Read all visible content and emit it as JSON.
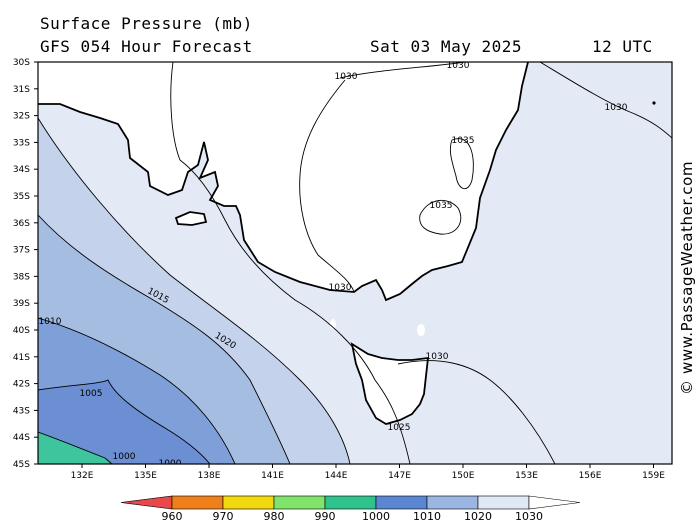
{
  "header": {
    "title": "Surface Pressure (mb)",
    "forecast": "GFS 054 Hour Forecast",
    "date": "Sat 03 May 2025",
    "time": "12 UTC"
  },
  "credit": "© www.PassageWeather.com",
  "map": {
    "lat_labels": [
      "30S",
      "31S",
      "32S",
      "33S",
      "34S",
      "35S",
      "36S",
      "37S",
      "38S",
      "39S",
      "40S",
      "41S",
      "42S",
      "43S",
      "44S",
      "45S"
    ],
    "lon_labels": [
      "132E",
      "135E",
      "138E",
      "141E",
      "144E",
      "147E",
      "150E",
      "153E",
      "156E",
      "159E"
    ],
    "isobar_labels": {
      "i1030_a": "1030",
      "i1030_b": "1030",
      "i1030_c": "1030",
      "i1030_d": "1030",
      "i1030_e": "1030",
      "i1035_a": "1035",
      "i1035_b": "1035",
      "i1025": "1025",
      "i1020": "1020",
      "i1015": "1015",
      "i1010": "1010",
      "i1005": "1005",
      "i1000_a": "1000",
      "i1000_b": "1000"
    },
    "fill_colors": {
      "land": "#ffffff",
      "p1020": "#e3eaf6",
      "p1015": "#c4d2ec",
      "p1010": "#a6bde2",
      "p1005": "#7f9fd8",
      "p1000": "#6b8fd2",
      "p995": "#3fc59e"
    }
  },
  "legend": {
    "labels": [
      "960",
      "970",
      "980",
      "990",
      "1000",
      "1010",
      "1020",
      "1030"
    ],
    "colors": [
      "#e8484b",
      "#ef7f1a",
      "#f2d90e",
      "#7fe36c",
      "#2fc28a",
      "#5b86d2",
      "#9bb6e2",
      "#dfe8f6",
      "#ffffff"
    ]
  }
}
